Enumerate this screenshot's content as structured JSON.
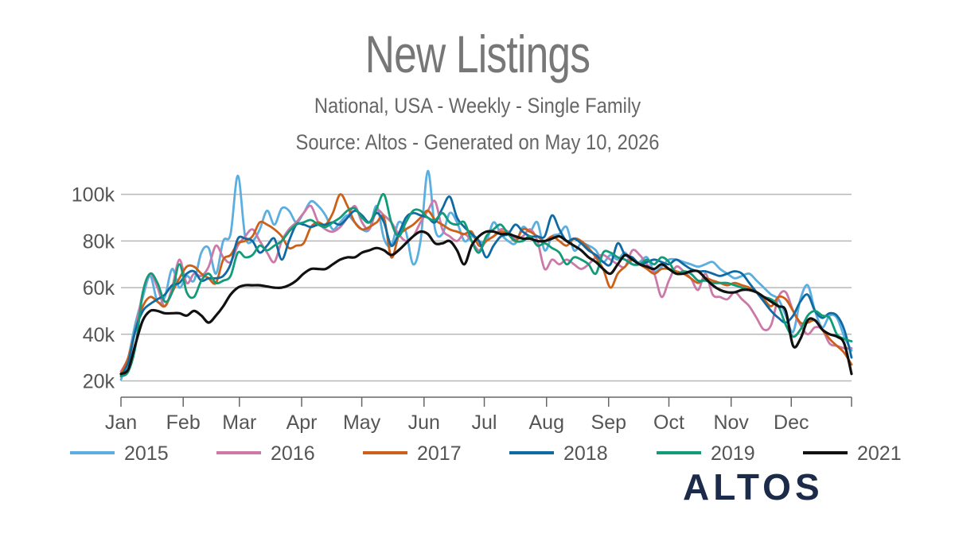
{
  "header": {
    "title": "New Listings",
    "subtitle": "National, USA - Weekly - Single Family",
    "source": "Source: Altos - Generated on May 10, 2026"
  },
  "logo": {
    "text": "ALTOS",
    "color": "#1c2b4a"
  },
  "chart_data": {
    "type": "line",
    "xlabel": "",
    "ylabel": "",
    "ylim": [
      13000,
      105000
    ],
    "xlim": [
      0,
      52
    ],
    "grid": true,
    "y_ticks": [
      {
        "value": 20000,
        "label": "20k"
      },
      {
        "value": 40000,
        "label": "40k"
      },
      {
        "value": 60000,
        "label": "60k"
      },
      {
        "value": 80000,
        "label": "80k"
      },
      {
        "value": 100000,
        "label": "100k"
      }
    ],
    "x_ticks": [
      {
        "week": 0,
        "label": "Jan"
      },
      {
        "week": 4.43,
        "label": "Feb"
      },
      {
        "week": 8.43,
        "label": "Mar"
      },
      {
        "week": 12.86,
        "label": "Apr"
      },
      {
        "week": 17.14,
        "label": "May"
      },
      {
        "week": 21.57,
        "label": "Jun"
      },
      {
        "week": 25.86,
        "label": "Jul"
      },
      {
        "week": 30.29,
        "label": "Aug"
      },
      {
        "week": 34.71,
        "label": "Sep"
      },
      {
        "week": 39,
        "label": "Oct"
      },
      {
        "week": 43.43,
        "label": "Nov"
      },
      {
        "week": 47.71,
        "label": "Dec"
      }
    ],
    "legend_position": "bottom",
    "series": [
      {
        "name": "2015",
        "color": "#5aaee0",
        "values": [
          20500,
          30000,
          45000,
          56000,
          65000,
          54000,
          56000,
          68000,
          60000,
          65000,
          63000,
          75000,
          77000,
          66000,
          80000,
          83000,
          108000,
          82000,
          80000,
          85000,
          93000,
          87000,
          94000,
          93000,
          88000,
          92000,
          97000,
          95000,
          91000,
          85000,
          88000,
          91000,
          88000,
          85000,
          85000,
          95000,
          81000,
          78000,
          88000,
          84000,
          70000,
          80000,
          110000,
          85000,
          83000,
          92000,
          88000,
          80000,
          82000,
          80000,
          80000,
          88000,
          83000,
          80000,
          79000,
          86000,
          84000,
          88000,
          76000,
          82000,
          83000,
          86000,
          76000,
          79000,
          78000,
          76000,
          71000,
          74000,
          72000,
          75000,
          70000,
          71000,
          73000,
          67000,
          69000,
          72000,
          72000,
          71000,
          70000,
          69000,
          70000,
          71000,
          68000,
          66000,
          64000,
          65000,
          66000,
          63000,
          60000,
          57000,
          55000,
          48000,
          41000,
          55000,
          61000,
          50000,
          43000,
          48000,
          47000,
          39000,
          33000
        ]
      },
      {
        "name": "2016",
        "color": "#cc79a7",
        "values": [
          24000,
          30000,
          42000,
          58000,
          66000,
          60000,
          52000,
          60000,
          72000,
          62000,
          66000,
          65000,
          69000,
          78000,
          73000,
          71000,
          78000,
          82000,
          85000,
          80000,
          75000,
          71000,
          80000,
          85000,
          88000,
          92000,
          95000,
          88000,
          85000,
          84000,
          86000,
          90000,
          95000,
          88000,
          85000,
          93000,
          91000,
          88000,
          83000,
          80000,
          82000,
          88000,
          93000,
          97000,
          85000,
          82000,
          80000,
          83000,
          80000,
          76000,
          80000,
          82000,
          85000,
          84000,
          81000,
          82000,
          85000,
          80000,
          68000,
          72000,
          70000,
          72000,
          70000,
          68000,
          70000,
          73000,
          74000,
          72000,
          70000,
          69000,
          76000,
          74000,
          70000,
          66000,
          56000,
          63000,
          69000,
          67000,
          64000,
          59000,
          66000,
          57000,
          56000,
          55000,
          58000,
          55000,
          52000,
          47000,
          42000,
          44000,
          56000,
          58000,
          50000,
          44000,
          40000,
          43000,
          42000,
          36000,
          35000,
          34000,
          34000
        ]
      },
      {
        "name": "2017",
        "color": "#cc6018",
        "values": [
          23000,
          30000,
          42000,
          52000,
          56000,
          54000,
          52000,
          58000,
          64000,
          69000,
          69000,
          66000,
          64000,
          62000,
          72000,
          74000,
          79000,
          80000,
          82000,
          88000,
          87000,
          85000,
          82000,
          77000,
          78000,
          79000,
          86000,
          88000,
          87000,
          92000,
          100000,
          95000,
          88000,
          85000,
          86000,
          88000,
          90000,
          73000,
          82000,
          85000,
          87000,
          90000,
          93000,
          89000,
          87000,
          85000,
          84000,
          83000,
          84000,
          78000,
          80000,
          82000,
          84000,
          83000,
          80000,
          85000,
          84000,
          82000,
          80000,
          82000,
          80000,
          78000,
          81000,
          80000,
          77000,
          73000,
          68000,
          60000,
          66000,
          69000,
          72000,
          70000,
          68000,
          66000,
          68000,
          68000,
          67000,
          66000,
          64000,
          62000,
          64000,
          63000,
          62000,
          61000,
          62000,
          61000,
          60000,
          58000,
          55000,
          52000,
          56000,
          55000,
          50000,
          45000,
          45000,
          46000,
          42000,
          38000,
          35000,
          32000,
          27000
        ]
      },
      {
        "name": "2018",
        "color": "#0f6aa4",
        "values": [
          22000,
          28000,
          42000,
          50000,
          53000,
          55000,
          57000,
          61000,
          62000,
          66000,
          67000,
          63000,
          64000,
          64000,
          65000,
          70000,
          81000,
          81000,
          80000,
          75000,
          78000,
          81000,
          72000,
          80000,
          87000,
          87000,
          86000,
          87000,
          87000,
          88000,
          87000,
          90000,
          93000,
          91000,
          88000,
          92000,
          88000,
          78000,
          83000,
          90000,
          92000,
          91000,
          90000,
          88000,
          94000,
          99000,
          90000,
          86000,
          83000,
          80000,
          73000,
          78000,
          82000,
          83000,
          87000,
          84000,
          82000,
          82000,
          82000,
          91000,
          85000,
          80000,
          81000,
          79000,
          76000,
          74000,
          71000,
          70000,
          79000,
          74000,
          73000,
          70000,
          71000,
          72000,
          71000,
          70000,
          72000,
          70000,
          68000,
          67000,
          67000,
          66000,
          65000,
          66000,
          67000,
          66000,
          62000,
          58000,
          54000,
          50000,
          47000,
          45000,
          48000,
          54000,
          57000,
          50000,
          47000,
          49000,
          48000,
          42000,
          30000
        ]
      },
      {
        "name": "2019",
        "color": "#129b78",
        "values": [
          22000,
          24000,
          35000,
          58000,
          66000,
          62000,
          54000,
          58000,
          70000,
          58000,
          56000,
          63000,
          66000,
          62000,
          63000,
          65000,
          75000,
          73000,
          74000,
          78000,
          76000,
          78000,
          80000,
          84000,
          87000,
          88000,
          89000,
          87000,
          86000,
          88000,
          90000,
          93000,
          94000,
          90000,
          88000,
          94000,
          100000,
          88000,
          82000,
          88000,
          93000,
          93000,
          90000,
          89000,
          92000,
          88000,
          87000,
          88000,
          80000,
          75000,
          82000,
          85000,
          87000,
          83000,
          80000,
          80000,
          82000,
          78000,
          79000,
          77000,
          75000,
          70000,
          73000,
          72000,
          70000,
          66000,
          75000,
          75000,
          73000,
          72000,
          70000,
          70000,
          72000,
          70000,
          73000,
          71000,
          66000,
          67000,
          66000,
          63000,
          63000,
          62000,
          62000,
          62000,
          61000,
          60000,
          59000,
          58000,
          56000,
          55000,
          52000,
          44000,
          39000,
          42000,
          48000,
          50000,
          48000,
          47000,
          40000,
          38000,
          37000
        ]
      },
      {
        "name": "2021",
        "color": "#111111",
        "values": [
          23000,
          25000,
          36000,
          46000,
          50000,
          50000,
          49000,
          49000,
          49000,
          48000,
          50000,
          48000,
          45000,
          48000,
          52000,
          57000,
          60000,
          61000,
          61000,
          61000,
          60500,
          60000,
          60000,
          61000,
          63000,
          66000,
          68000,
          68000,
          68000,
          70000,
          72000,
          73000,
          73000,
          75000,
          76000,
          77000,
          76000,
          74000,
          76000,
          79000,
          82000,
          84000,
          83000,
          79000,
          79000,
          80000,
          76000,
          70000,
          78000,
          82000,
          84000,
          84000,
          83000,
          83000,
          82000,
          81000,
          81000,
          80000,
          80000,
          81000,
          82000,
          80000,
          78000,
          76000,
          73000,
          71000,
          68000,
          66000,
          70000,
          74000,
          72000,
          70000,
          69000,
          68000,
          70000,
          68000,
          66000,
          66000,
          67000,
          67000,
          64000,
          61000,
          59000,
          58000,
          58000,
          59000,
          59000,
          58000,
          56000,
          54000,
          52000,
          50000,
          35000,
          38000,
          46000,
          46000,
          42000,
          40000,
          39000,
          36000,
          23000
        ]
      }
    ]
  }
}
